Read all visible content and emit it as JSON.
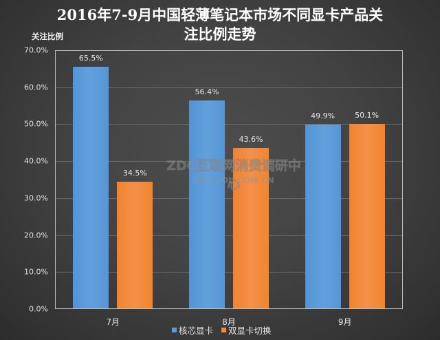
{
  "title_line1": "2016年7-9月中国轻薄笔记本市场不同显卡产品关",
  "title_line2": "注比例走势",
  "y_axis_label": "关注比例",
  "watermark": {
    "line1": "ZDC互联网消费调研中心",
    "line2": "ZDC.ZOL.COM.CN"
  },
  "y_ticks": [
    "70.0%",
    "60.0%",
    "50.0%",
    "40.0%",
    "30.0%",
    "20.0%",
    "10.0%",
    "0.0%"
  ],
  "categories": [
    "7月",
    "8月",
    "9月"
  ],
  "legend": [
    {
      "name": "核芯显卡",
      "color": "#5b9bd5"
    },
    {
      "name": "双显卡切换",
      "color": "#f08a3e"
    }
  ],
  "labels": {
    "s0": [
      "65.5%",
      "56.4%",
      "49.9%"
    ],
    "s1": [
      "34.5%",
      "43.6%",
      "50.1%"
    ]
  },
  "chart_data": {
    "type": "bar",
    "title": "2016年7-9月中国轻薄笔记本市场不同显卡产品关注比例走势",
    "xlabel": "",
    "ylabel": "关注比例",
    "ylim": [
      0,
      70
    ],
    "y_ticks": [
      "0.0%",
      "10.0%",
      "20.0%",
      "30.0%",
      "40.0%",
      "50.0%",
      "60.0%",
      "70.0%"
    ],
    "grid": true,
    "legend_position": "bottom",
    "categories": [
      "7月",
      "8月",
      "9月"
    ],
    "series": [
      {
        "name": "核芯显卡",
        "color": "#5b9bd5",
        "values": [
          65.5,
          56.4,
          49.9
        ]
      },
      {
        "name": "双显卡切换",
        "color": "#f08a3e",
        "values": [
          34.5,
          43.6,
          50.1
        ]
      }
    ],
    "data_labels": true
  }
}
